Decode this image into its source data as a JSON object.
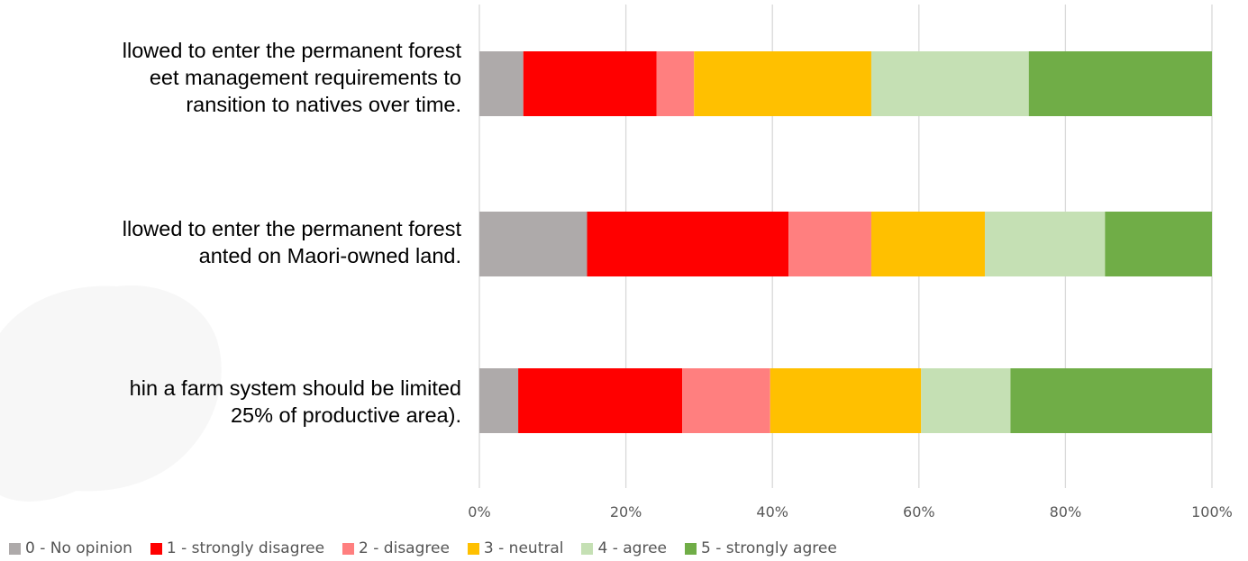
{
  "chart_data": {
    "type": "bar",
    "orientation": "horizontal",
    "stacked": "100%",
    "categories": [
      "llowed to enter the permanent forest\neet management requirements to\nransition to natives over time.",
      "llowed to enter the permanent forest\nanted on Maori-owned land.",
      "hin a farm system should be limited\n25% of productive area)."
    ],
    "series": [
      {
        "name": "0 - No opinion",
        "color": "#AEAAAA",
        "values": [
          6.0,
          14.7,
          5.3
        ]
      },
      {
        "name": "1 - strongly disagree",
        "color": "#FF0000",
        "values": [
          18.2,
          27.5,
          22.4
        ]
      },
      {
        "name": "2 - disagree",
        "color": "#FF7F7F",
        "values": [
          5.1,
          11.3,
          12.0
        ]
      },
      {
        "name": "3 - neutral",
        "color": "#FFC000",
        "values": [
          24.2,
          15.5,
          20.6
        ]
      },
      {
        "name": "4 - agree",
        "color": "#C5E0B4",
        "values": [
          21.5,
          16.4,
          12.2
        ]
      },
      {
        "name": "5 - strongly agree",
        "color": "#70AD47",
        "values": [
          25.0,
          14.6,
          27.5
        ]
      }
    ],
    "x_ticks": [
      "0%",
      "20%",
      "40%",
      "60%",
      "80%",
      "100%"
    ],
    "xlim": [
      0,
      100
    ],
    "grid": true,
    "legend_position": "bottom",
    "title": "",
    "xlabel": "",
    "ylabel": ""
  }
}
